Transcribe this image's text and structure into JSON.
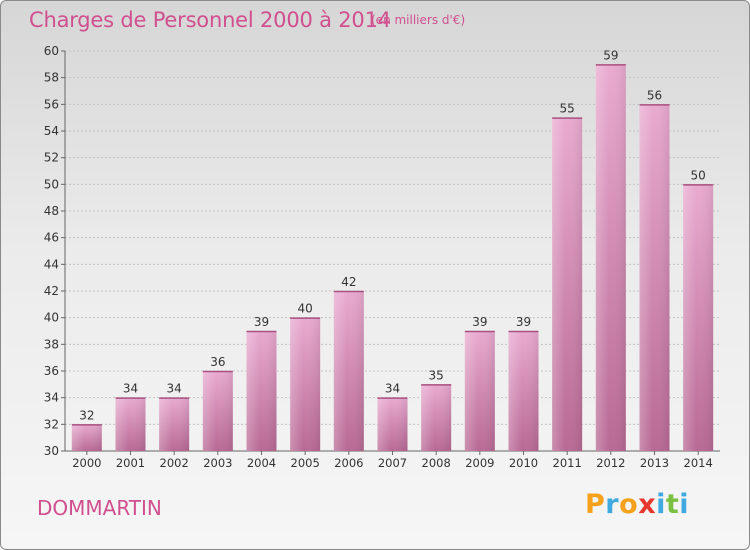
{
  "header": {
    "title": "Charges de Personnel 2000 à 2014",
    "subtitle": "(en milliers d'€)"
  },
  "footer": {
    "commune": "DOMMARTIN",
    "logo_letters": [
      "P",
      "r",
      "o",
      "x",
      "i",
      "t",
      "i"
    ],
    "logo_colors": [
      "#f5a11c",
      "#3fa9e0",
      "#f5a11c",
      "#e8372d",
      "#3fa9e0",
      "#7ac043",
      "#3fa9e0"
    ]
  },
  "colors": {
    "accent": "#d14f8f",
    "bar_light": "#e9aad0",
    "bar_dark": "#c66a9d"
  },
  "chart_data": {
    "type": "bar",
    "categories": [
      "2000",
      "2001",
      "2002",
      "2003",
      "2004",
      "2005",
      "2006",
      "2007",
      "2008",
      "2009",
      "2010",
      "2011",
      "2012",
      "2013",
      "2014"
    ],
    "values": [
      32,
      34,
      34,
      36,
      39,
      40,
      42,
      34,
      35,
      39,
      39,
      55,
      59,
      56,
      50
    ],
    "ylim": [
      30,
      60
    ],
    "yticks": [
      30,
      32,
      34,
      36,
      38,
      40,
      42,
      44,
      46,
      48,
      50,
      52,
      54,
      56,
      58,
      60
    ],
    "grid": true,
    "title": "Charges de Personnel 2000 à 2014",
    "xlabel": "",
    "ylabel": ""
  }
}
